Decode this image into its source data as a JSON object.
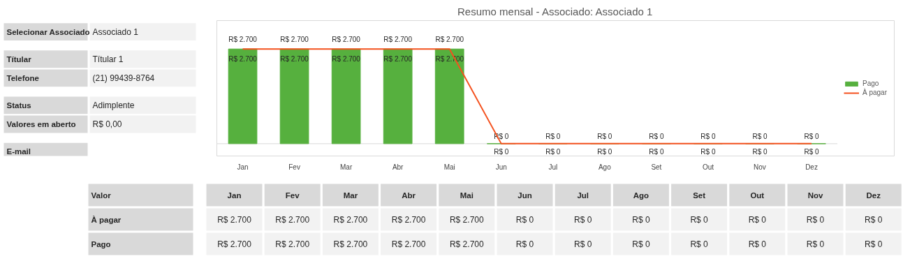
{
  "chart_data": {
    "type": "bar",
    "title": "Resumo mensal - Associado: Associado 1",
    "categories": [
      "Jan",
      "Fev",
      "Mar",
      "Abr",
      "Mai",
      "Jun",
      "Jul",
      "Ago",
      "Set",
      "Out",
      "Nov",
      "Dez"
    ],
    "series": [
      {
        "name": "Pago",
        "color": "#56b03e",
        "values": [
          2700,
          2700,
          2700,
          2700,
          2700,
          0,
          0,
          0,
          0,
          0,
          0,
          0
        ],
        "value_labels": [
          "R$ 2.700",
          "R$ 2.700",
          "R$ 2.700",
          "R$ 2.700",
          "R$ 2.700",
          "R$ 0",
          "R$ 0",
          "R$ 0",
          "R$ 0",
          "R$ 0",
          "R$ 0",
          "R$ 0"
        ]
      },
      {
        "name": "À pagar",
        "type": "line",
        "color": "#f4511e",
        "values": [
          2700,
          2700,
          2700,
          2700,
          2700,
          0,
          0,
          0,
          0,
          0,
          0,
          0
        ],
        "value_labels": [
          "R$ 2.700",
          "R$ 2.700",
          "R$ 2.700",
          "R$ 2.700",
          "R$ 2.700",
          "R$ 0",
          "R$ 0",
          "R$ 0",
          "R$ 0",
          "R$ 0",
          "R$ 0",
          "R$ 0"
        ]
      }
    ],
    "legend": "right",
    "grid": false,
    "annotations": [
      "Valor",
      "Selecionar Associado",
      "Associado 1",
      "Títular",
      "Títular 1",
      "Telefone",
      "(21) 99439-8764",
      "Status",
      "Adimplente",
      "Valores em aberto",
      "R$ 0,00",
      "E-mail"
    ]
  }
}
